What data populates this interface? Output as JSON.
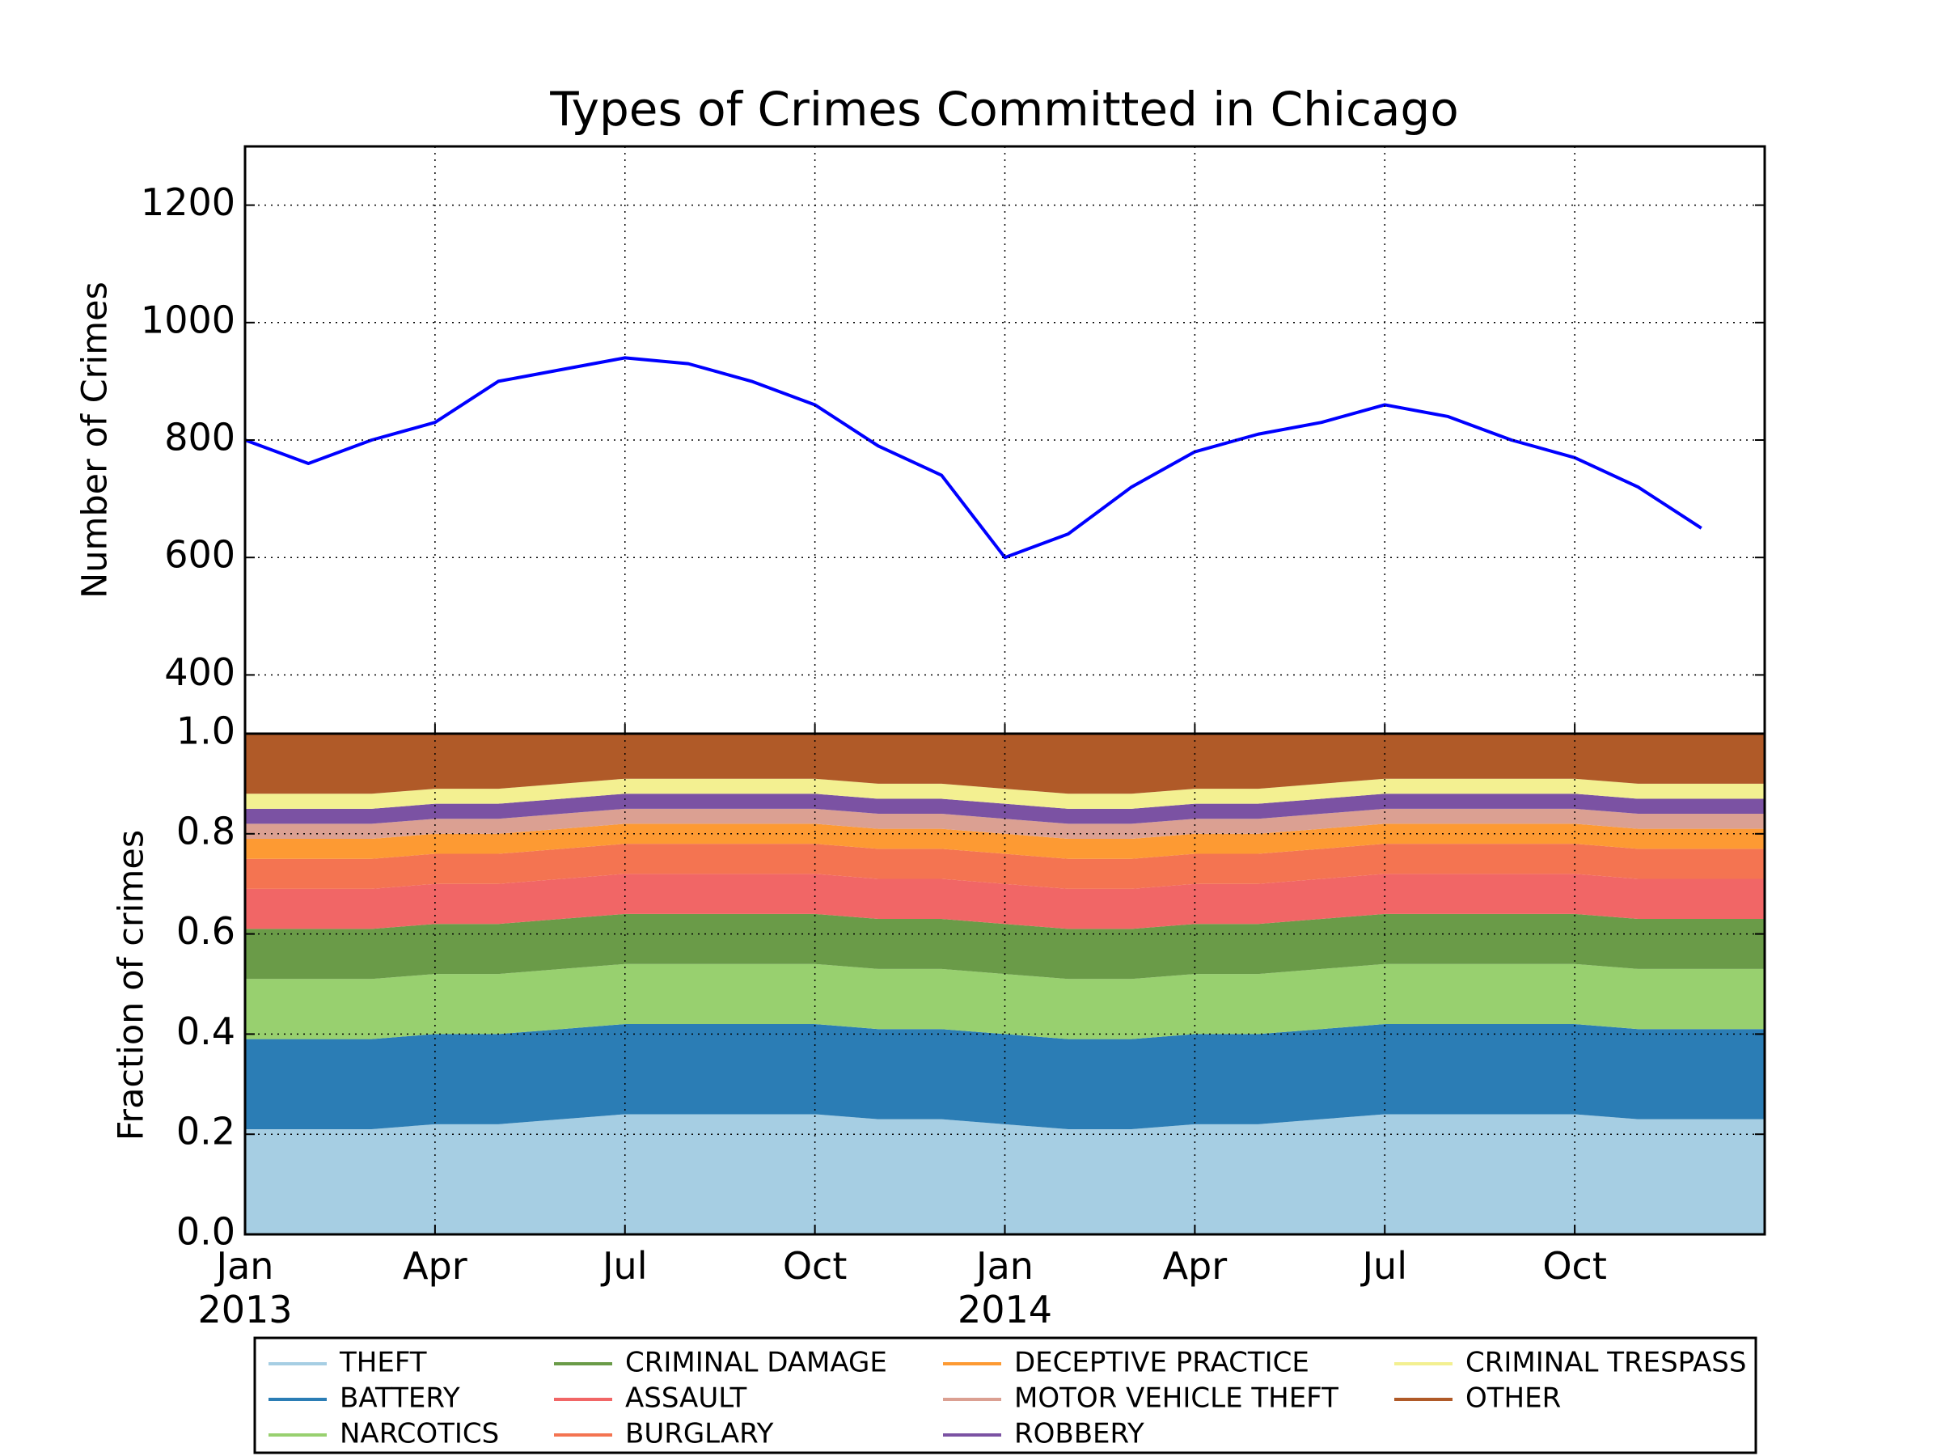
{
  "chart_data": [
    {
      "type": "line",
      "title": "Types of Crimes Committed in Chicago",
      "ylabel": "Number of Crimes",
      "x": [
        "2013-01",
        "2013-02",
        "2013-03",
        "2013-04",
        "2013-05",
        "2013-06",
        "2013-07",
        "2013-08",
        "2013-09",
        "2013-10",
        "2013-11",
        "2013-12",
        "2014-01",
        "2014-02",
        "2014-03",
        "2014-04",
        "2014-05",
        "2014-06",
        "2014-07",
        "2014-08",
        "2014-09",
        "2014-10",
        "2014-11",
        "2014-12"
      ],
      "series": [
        {
          "name": "Number of Crimes",
          "color": "#0000ff",
          "values": [
            800,
            760,
            800,
            830,
            900,
            920,
            940,
            930,
            900,
            860,
            790,
            740,
            600,
            640,
            720,
            780,
            810,
            830,
            860,
            840,
            800,
            770,
            720,
            650
          ]
        }
      ],
      "xlim": [
        "2013-01",
        "2015-01"
      ],
      "ylim": [
        300,
        1300
      ],
      "yticks": [
        400,
        600,
        800,
        1000,
        1200
      ],
      "grid": true
    },
    {
      "type": "stackedarea",
      "ylabel": "Fraction of crimes",
      "x": [
        "2013-01",
        "2013-02",
        "2013-03",
        "2013-04",
        "2013-05",
        "2013-06",
        "2013-07",
        "2013-08",
        "2013-09",
        "2013-10",
        "2013-11",
        "2013-12",
        "2014-01",
        "2014-02",
        "2014-03",
        "2014-04",
        "2014-05",
        "2014-06",
        "2014-07",
        "2014-08",
        "2014-09",
        "2014-10",
        "2014-11",
        "2014-12"
      ],
      "series": [
        {
          "name": "THEFT",
          "color": "#a6cee3",
          "values": [
            0.21,
            0.21,
            0.21,
            0.22,
            0.22,
            0.23,
            0.24,
            0.24,
            0.24,
            0.24,
            0.23,
            0.23,
            0.22,
            0.21,
            0.21,
            0.22,
            0.22,
            0.23,
            0.24,
            0.24,
            0.24,
            0.24,
            0.23,
            0.23
          ]
        },
        {
          "name": "BATTERY",
          "color": "#2b7db5",
          "values": [
            0.18,
            0.18,
            0.18,
            0.18,
            0.18,
            0.18,
            0.18,
            0.18,
            0.18,
            0.18,
            0.18,
            0.18,
            0.18,
            0.18,
            0.18,
            0.18,
            0.18,
            0.18,
            0.18,
            0.18,
            0.18,
            0.18,
            0.18,
            0.18
          ]
        },
        {
          "name": "NARCOTICS",
          "color": "#98d06f",
          "values": [
            0.12,
            0.12,
            0.12,
            0.12,
            0.12,
            0.12,
            0.12,
            0.12,
            0.12,
            0.12,
            0.12,
            0.12,
            0.12,
            0.12,
            0.12,
            0.12,
            0.12,
            0.12,
            0.12,
            0.12,
            0.12,
            0.12,
            0.12,
            0.12
          ]
        },
        {
          "name": "CRIMINAL DAMAGE",
          "color": "#6a9b48",
          "values": [
            0.1,
            0.1,
            0.1,
            0.1,
            0.1,
            0.1,
            0.1,
            0.1,
            0.1,
            0.1,
            0.1,
            0.1,
            0.1,
            0.1,
            0.1,
            0.1,
            0.1,
            0.1,
            0.1,
            0.1,
            0.1,
            0.1,
            0.1,
            0.1
          ]
        },
        {
          "name": "ASSAULT",
          "color": "#f16666",
          "values": [
            0.08,
            0.08,
            0.08,
            0.08,
            0.08,
            0.08,
            0.08,
            0.08,
            0.08,
            0.08,
            0.08,
            0.08,
            0.08,
            0.08,
            0.08,
            0.08,
            0.08,
            0.08,
            0.08,
            0.08,
            0.08,
            0.08,
            0.08,
            0.08
          ]
        },
        {
          "name": "BURGLARY",
          "color": "#f47451",
          "values": [
            0.06,
            0.06,
            0.06,
            0.06,
            0.06,
            0.06,
            0.06,
            0.06,
            0.06,
            0.06,
            0.06,
            0.06,
            0.06,
            0.06,
            0.06,
            0.06,
            0.06,
            0.06,
            0.06,
            0.06,
            0.06,
            0.06,
            0.06,
            0.06
          ]
        },
        {
          "name": "DECEPTIVE PRACTICE",
          "color": "#fd9a33",
          "values": [
            0.04,
            0.04,
            0.04,
            0.04,
            0.04,
            0.04,
            0.04,
            0.04,
            0.04,
            0.04,
            0.04,
            0.04,
            0.04,
            0.04,
            0.04,
            0.04,
            0.04,
            0.04,
            0.04,
            0.04,
            0.04,
            0.04,
            0.04,
            0.04
          ]
        },
        {
          "name": "MOTOR VEHICLE THEFT",
          "color": "#dba092",
          "values": [
            0.03,
            0.03,
            0.03,
            0.03,
            0.03,
            0.03,
            0.03,
            0.03,
            0.03,
            0.03,
            0.03,
            0.03,
            0.03,
            0.03,
            0.03,
            0.03,
            0.03,
            0.03,
            0.03,
            0.03,
            0.03,
            0.03,
            0.03,
            0.03
          ]
        },
        {
          "name": "ROBBERY",
          "color": "#7b52a3",
          "values": [
            0.03,
            0.03,
            0.03,
            0.03,
            0.03,
            0.03,
            0.03,
            0.03,
            0.03,
            0.03,
            0.03,
            0.03,
            0.03,
            0.03,
            0.03,
            0.03,
            0.03,
            0.03,
            0.03,
            0.03,
            0.03,
            0.03,
            0.03,
            0.03
          ]
        },
        {
          "name": "CRIMINAL TRESPASS",
          "color": "#f3f091",
          "values": [
            0.03,
            0.03,
            0.03,
            0.03,
            0.03,
            0.03,
            0.03,
            0.03,
            0.03,
            0.03,
            0.03,
            0.03,
            0.03,
            0.03,
            0.03,
            0.03,
            0.03,
            0.03,
            0.03,
            0.03,
            0.03,
            0.03,
            0.03,
            0.03
          ]
        },
        {
          "name": "OTHER",
          "color": "#b05a28",
          "values": [
            0.12,
            0.12,
            0.12,
            0.11,
            0.11,
            0.1,
            0.09,
            0.09,
            0.09,
            0.09,
            0.1,
            0.1,
            0.11,
            0.12,
            0.12,
            0.11,
            0.11,
            0.1,
            0.09,
            0.09,
            0.09,
            0.09,
            0.1,
            0.1
          ]
        }
      ],
      "xlim": [
        "2013-01",
        "2015-01"
      ],
      "ylim": [
        0,
        1
      ],
      "yticks": [
        {
          "value": 0,
          "label": "0.0"
        },
        {
          "value": 0.2,
          "label": "0.2"
        },
        {
          "value": 0.4,
          "label": "0.4"
        },
        {
          "value": 0.6,
          "label": "0.6"
        },
        {
          "value": 0.8,
          "label": "0.8"
        },
        {
          "value": 1,
          "label": "1.0"
        }
      ],
      "xticks": [
        {
          "value": "2013-01",
          "label": "Jan\n2013"
        },
        {
          "value": "2013-04",
          "label": "Apr"
        },
        {
          "value": "2013-07",
          "label": "Jul"
        },
        {
          "value": "2013-10",
          "label": "Oct"
        },
        {
          "value": "2014-01",
          "label": "Jan\n2014"
        },
        {
          "value": "2014-04",
          "label": "Apr"
        },
        {
          "value": "2014-07",
          "label": "Jul"
        },
        {
          "value": "2014-10",
          "label": "Oct"
        }
      ],
      "grid": true
    }
  ]
}
